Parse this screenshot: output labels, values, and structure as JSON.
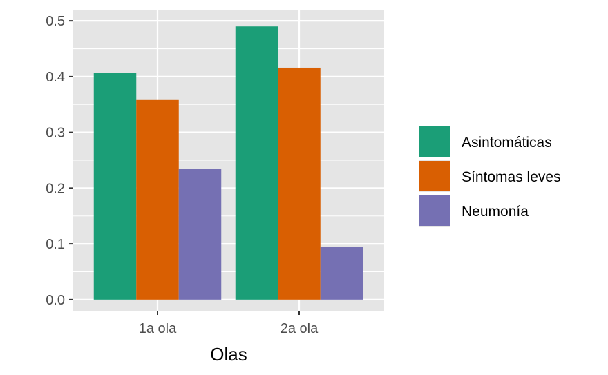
{
  "chart_data": {
    "type": "bar",
    "categories": [
      "1a ola",
      "2a ola"
    ],
    "series": [
      {
        "name": "Asintomáticas",
        "color": "#1b9e77",
        "values": [
          0.407,
          0.49
        ]
      },
      {
        "name": "Síntomas leves",
        "color": "#d95f02",
        "values": [
          0.358,
          0.416
        ]
      },
      {
        "name": "Neumonía",
        "color": "#7570b3",
        "values": [
          0.235,
          0.094
        ]
      }
    ],
    "xlabel": "Olas",
    "ylabel": "",
    "ylim": [
      -0.02,
      0.52
    ],
    "yticks": [
      "0.0",
      "0.1",
      "0.2",
      "0.3",
      "0.4",
      "0.5"
    ],
    "grid": true,
    "legend_position": "right",
    "panel_background": "#e5e5e5",
    "grid_color": "#ffffff"
  }
}
